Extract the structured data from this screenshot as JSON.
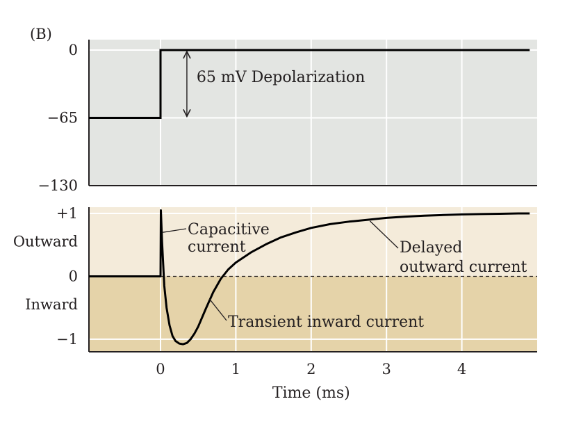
{
  "panel_label": "(B)",
  "colors": {
    "voltage_bg": "#e3e5e2",
    "outward_bg": "#f4ebda",
    "inward_bg": "#e5d3a9",
    "grid": "#ffffff",
    "trace": "#000000",
    "axis": "#231f20"
  },
  "chart_data": [
    {
      "type": "line",
      "name": "voltage-panel",
      "xlim": [
        -0.95,
        5.0
      ],
      "ylim": [
        -130,
        10
      ],
      "yticks": [
        0,
        -65,
        -130
      ],
      "ytick_labels": [
        "0",
        "−65",
        "−130"
      ],
      "grid": true,
      "series": [
        {
          "x": [
            -0.95,
            0,
            0,
            4.9
          ],
          "y": [
            -65,
            -65,
            0,
            0
          ]
        }
      ],
      "annotations": [
        {
          "text": "65 mV Depolarization",
          "arrow_x": 0.35,
          "arrow_from": -65,
          "arrow_to": 0
        }
      ]
    },
    {
      "type": "line",
      "name": "current-panel",
      "xlim": [
        -0.95,
        5.0
      ],
      "ylim": [
        -1.2,
        1.1
      ],
      "xticks": [
        0,
        1,
        2,
        3,
        4
      ],
      "xtick_labels": [
        "0",
        "1",
        "2",
        "3",
        "4"
      ],
      "yticks": [
        1,
        0,
        -1
      ],
      "ytick_labels": [
        "+1",
        "0",
        "−1"
      ],
      "yregion_labels": [
        {
          "text": "Outward",
          "y": 0.55
        },
        {
          "text": "Inward",
          "y": -0.45
        }
      ],
      "xlabel": "Time (ms)",
      "grid": true,
      "baseline_dashed": 0,
      "series": [
        {
          "x": [
            -0.95,
            0,
            0.005,
            0.02,
            0.05,
            0.08,
            0.12,
            0.16,
            0.2,
            0.25,
            0.3,
            0.35,
            0.4,
            0.45,
            0.5,
            0.6,
            0.7,
            0.8,
            0.9,
            1.0,
            1.2,
            1.4,
            1.6,
            1.8,
            2.0,
            2.25,
            2.5,
            2.75,
            3.0,
            3.25,
            3.5,
            3.75,
            4.0,
            4.25,
            4.5,
            4.75,
            4.9
          ],
          "y": [
            0,
            0,
            1.05,
            0.55,
            -0.15,
            -0.5,
            -0.78,
            -0.95,
            -1.03,
            -1.07,
            -1.08,
            -1.06,
            -1.0,
            -0.91,
            -0.8,
            -0.52,
            -0.25,
            -0.04,
            0.11,
            0.22,
            0.38,
            0.51,
            0.62,
            0.7,
            0.77,
            0.83,
            0.87,
            0.9,
            0.93,
            0.95,
            0.965,
            0.975,
            0.985,
            0.99,
            0.995,
            1.0,
            1.0
          ]
        }
      ],
      "annotations": [
        {
          "text": "Capacitive",
          "line2": "current",
          "points_to": [
            0.03,
            0.7
          ]
        },
        {
          "text": "Delayed",
          "line2": "outward current",
          "points_to": [
            2.78,
            0.88
          ]
        },
        {
          "text": "Transient inward current",
          "points_to": [
            0.65,
            -0.36
          ]
        }
      ]
    }
  ]
}
